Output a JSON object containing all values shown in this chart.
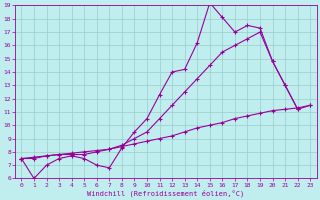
{
  "xlabel": "Windchill (Refroidissement éolien,°C)",
  "bg_color": "#c0eeee",
  "line_color": "#990099",
  "grid_color": "#99cccc",
  "xlim": [
    -0.5,
    23.5
  ],
  "ylim": [
    6,
    19
  ],
  "xticks": [
    0,
    1,
    2,
    3,
    4,
    5,
    6,
    7,
    8,
    9,
    10,
    11,
    12,
    13,
    14,
    15,
    16,
    17,
    18,
    19,
    20,
    21,
    22,
    23
  ],
  "yticks": [
    6,
    7,
    8,
    9,
    10,
    11,
    12,
    13,
    14,
    15,
    16,
    17,
    18,
    19
  ],
  "series": [
    {
      "x": [
        0,
        1,
        2,
        3,
        4,
        5,
        6,
        7,
        8,
        9,
        10,
        11,
        12,
        13,
        14,
        15,
        16,
        17,
        18,
        19,
        20,
        21,
        22
      ],
      "y": [
        7.5,
        6.0,
        7.0,
        7.5,
        7.7,
        7.5,
        7.0,
        6.8,
        8.3,
        9.5,
        10.5,
        12.3,
        14.0,
        14.2,
        16.2,
        19.2,
        18.1,
        17.0,
        17.5,
        17.3,
        14.8,
        13.0,
        11.2
      ]
    },
    {
      "x": [
        0,
        1,
        2,
        3,
        4,
        5,
        6,
        7,
        8,
        9,
        10,
        11,
        12,
        13,
        14,
        15,
        16,
        17,
        18,
        19,
        20,
        21,
        22,
        23
      ],
      "y": [
        7.5,
        7.5,
        7.7,
        7.8,
        7.8,
        7.8,
        8.0,
        8.2,
        8.5,
        9.0,
        9.5,
        10.5,
        11.5,
        12.5,
        13.5,
        14.5,
        15.5,
        16.0,
        16.5,
        17.0,
        14.8,
        13.0,
        11.2,
        11.5
      ]
    },
    {
      "x": [
        0,
        1,
        2,
        3,
        4,
        5,
        6,
        7,
        8,
        9,
        10,
        11,
        12,
        13,
        14,
        15,
        16,
        17,
        18,
        19,
        20,
        21,
        22,
        23
      ],
      "y": [
        7.5,
        7.6,
        7.7,
        7.8,
        7.9,
        8.0,
        8.1,
        8.2,
        8.4,
        8.6,
        8.8,
        9.0,
        9.2,
        9.5,
        9.8,
        10.0,
        10.2,
        10.5,
        10.7,
        10.9,
        11.1,
        11.2,
        11.3,
        11.5
      ]
    }
  ]
}
